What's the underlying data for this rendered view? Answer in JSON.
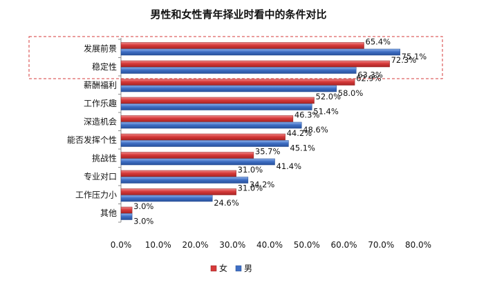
{
  "chart_data": {
    "type": "bar",
    "orientation": "horizontal",
    "title": "男性和女性青年择业时看中的条件对比",
    "categories": [
      "发展前景",
      "稳定性",
      "薪酬福利",
      "工作乐趣",
      "深造机会",
      "能否发挥个性",
      "挑战性",
      "专业对口",
      "工作压力小",
      "其他"
    ],
    "series": [
      {
        "name": "女",
        "color": "#d63a3a",
        "values": [
          65.4,
          72.3,
          62.9,
          52.0,
          46.3,
          44.2,
          35.7,
          31.0,
          31.0,
          3.0
        ],
        "labels": [
          "65.4%",
          "72.3%",
          "62.9%",
          "52.0%",
          "46.3%",
          "44.2%",
          "35.7%",
          "31.0%",
          "31.0%",
          "3.0%"
        ]
      },
      {
        "name": "男",
        "color": "#3f6fc4",
        "values": [
          75.1,
          63.3,
          58.0,
          51.4,
          48.6,
          45.1,
          41.4,
          34.2,
          24.6,
          3.0
        ],
        "labels": [
          "75.1%",
          "63.3%",
          "58.0%",
          "51.4%",
          "48.6%",
          "45.1%",
          "41.4%",
          "34.2%",
          "24.6%",
          "3.0%"
        ]
      }
    ],
    "xlim": [
      0,
      80
    ],
    "xticks": [
      0,
      10,
      20,
      30,
      40,
      50,
      60,
      70,
      80
    ],
    "xtick_labels": [
      "0.0%",
      "10.0%",
      "20.0%",
      "30.0%",
      "40.0%",
      "50.0%",
      "60.0%",
      "70.0%",
      "80.0%"
    ],
    "xlabel": "",
    "ylabel": "",
    "grid": false,
    "legend_position": "bottom-center",
    "highlight": {
      "categories": [
        "发展前景",
        "稳定性"
      ],
      "style": "dashed-box",
      "color": "#d63a3a"
    }
  }
}
